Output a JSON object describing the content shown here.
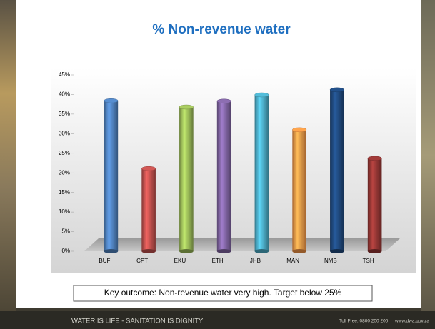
{
  "chart_data": {
    "type": "bar",
    "title": "% Non-revenue water",
    "categories": [
      "BUF",
      "CPT",
      "EKU",
      "ETH",
      "JHB",
      "MAN",
      "NMB",
      "TSH"
    ],
    "values": [
      38.4,
      21.1,
      36.8,
      38.3,
      39.9,
      31,
      41.2,
      23.7
    ],
    "colors": [
      "#4f81bd",
      "#c0504d",
      "#9bbb59",
      "#8064a2",
      "#4bacc6",
      "#f79646",
      "#1f497d",
      "#943634"
    ],
    "ylim": [
      0,
      45
    ],
    "yticks": [
      {
        "value": 0,
        "label": "0%"
      },
      {
        "value": 5,
        "label": "5%"
      },
      {
        "value": 10,
        "label": "10%"
      },
      {
        "value": 15,
        "label": "15%"
      },
      {
        "value": 20,
        "label": "20%"
      },
      {
        "value": 25,
        "label": "25%"
      },
      {
        "value": 30,
        "label": "30%"
      },
      {
        "value": 35,
        "label": "35%"
      },
      {
        "value": 40,
        "label": "40%"
      },
      {
        "value": 45,
        "label": "45%"
      }
    ],
    "grid": false
  },
  "caption": "Key outcome: Non-revenue water very high. Target below 25%",
  "footer": {
    "slogan": "WATER IS LIFE - SANITATION IS DIGNITY",
    "contact": "Toll Free: 0800 200 200",
    "website": "www.dwa.gov.za"
  }
}
